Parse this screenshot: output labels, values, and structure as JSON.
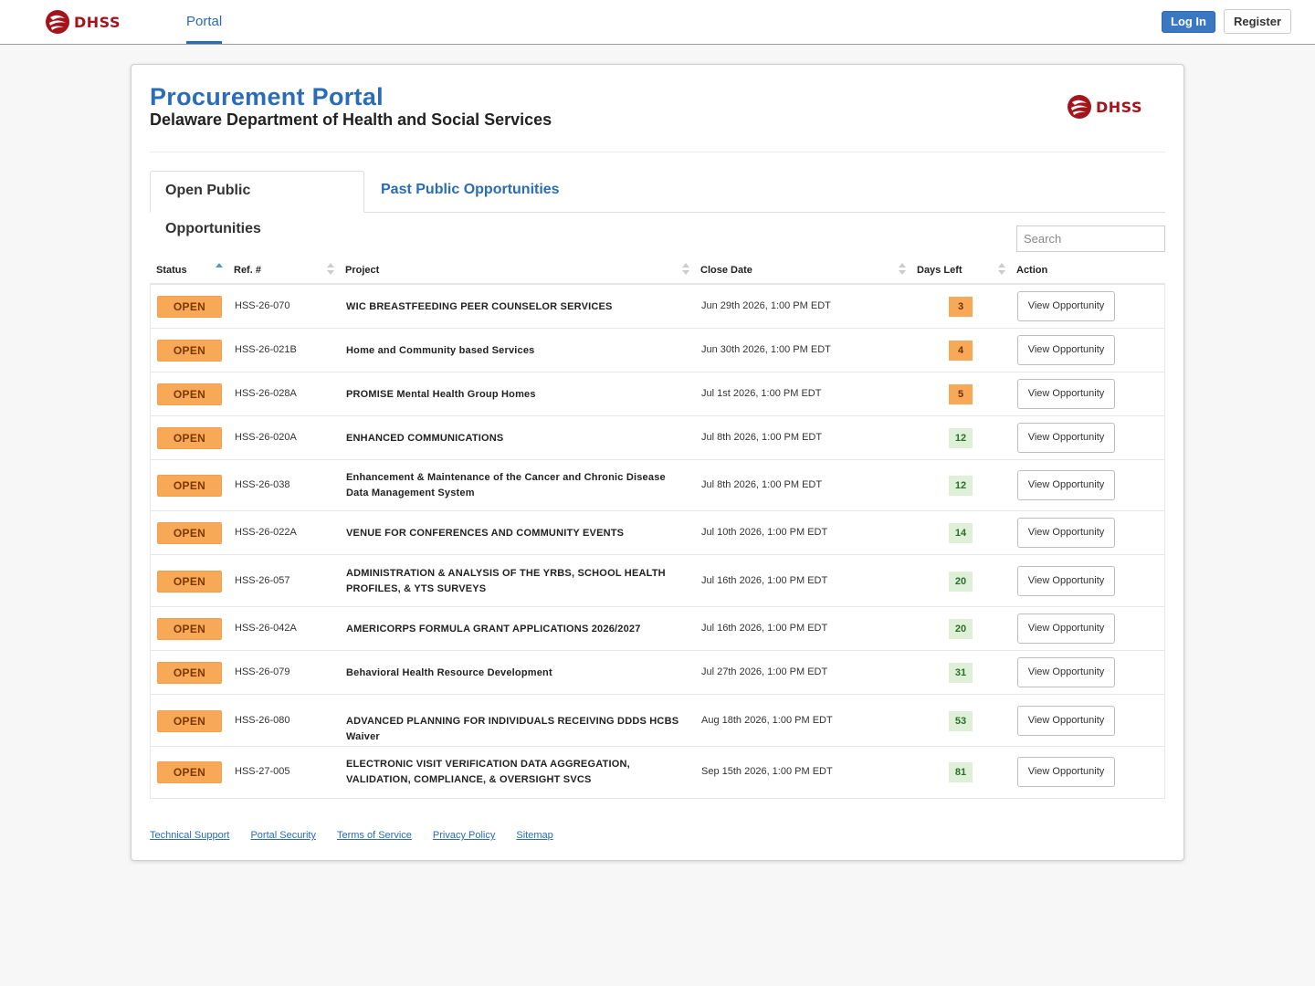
{
  "nav": {
    "logo_text": "DHSS",
    "portal_tab": "Portal",
    "login_label": "Log In",
    "register_label": "Register"
  },
  "header": {
    "title": "Procurement Portal",
    "subtitle": "Delaware Department of Health and Social Services",
    "logo_text": "DHSS"
  },
  "tabs": {
    "open": "Open Public Opportunities",
    "past": "Past Public Opportunities"
  },
  "search": {
    "placeholder": "Search"
  },
  "columns": {
    "status": "Status",
    "ref": "Ref. #",
    "project": "Project",
    "close_date": "Close Date",
    "days_left": "Days Left",
    "action": "Action"
  },
  "rows": [
    {
      "status": "OPEN",
      "ref": "HSS-26-070",
      "project": "WIC BREASTFEEDING PEER COUNSELOR SERVICES",
      "close": "Jun 29th 2026, 1:00 PM EDT",
      "days": "3",
      "level": "warn",
      "action": "View Opportunity"
    },
    {
      "status": "OPEN",
      "ref": "HSS-26-021B",
      "project": "Home and Community based Services",
      "close": "Jun 30th 2026, 1:00 PM EDT",
      "days": "4",
      "level": "warn",
      "action": "View Opportunity"
    },
    {
      "status": "OPEN",
      "ref": "HSS-26-028A",
      "project": "PROMISE Mental Health Group Homes",
      "close": "Jul 1st 2026, 1:00 PM EDT",
      "days": "5",
      "level": "warn",
      "action": "View Opportunity"
    },
    {
      "status": "OPEN",
      "ref": "HSS-26-020A",
      "project": "ENHANCED COMMUNICATIONS",
      "close": "Jul 8th 2026, 1:00 PM EDT",
      "days": "12",
      "level": "ok",
      "action": "View Opportunity"
    },
    {
      "status": "OPEN",
      "ref": "HSS-26-038",
      "project": "Enhancement & Maintenance of the Cancer and Chronic Disease Data Management System",
      "close": "Jul 8th 2026, 1:00 PM EDT",
      "days": "12",
      "level": "ok",
      "action": "View Opportunity"
    },
    {
      "status": "OPEN",
      "ref": "HSS-26-022A",
      "project": "VENUE FOR CONFERENCES AND COMMUNITY EVENTS",
      "close": "Jul 10th 2026, 1:00 PM EDT",
      "days": "14",
      "level": "ok",
      "action": "View Opportunity"
    },
    {
      "status": "OPEN",
      "ref": "HSS-26-057",
      "project": "ADMINISTRATION & ANALYSIS OF THE YRBS, SCHOOL HEALTH PROFILES, & YTS SURVEYS",
      "close": "Jul 16th 2026, 1:00 PM EDT",
      "days": "20",
      "level": "ok",
      "action": "View Opportunity"
    },
    {
      "status": "OPEN",
      "ref": "HSS-26-042A",
      "project": "AMERICORPS FORMULA GRANT APPLICATIONS 2026/2027",
      "close": "Jul 16th 2026, 1:00 PM EDT",
      "days": "20",
      "level": "ok",
      "action": "View Opportunity"
    },
    {
      "status": "OPEN",
      "ref": "HSS-26-079",
      "project": "Behavioral Health Resource Development",
      "close": "Jul 27th 2026, 1:00 PM EDT",
      "days": "31",
      "level": "ok",
      "action": "View Opportunity"
    },
    {
      "status": "OPEN",
      "ref": "HSS-26-080",
      "project": "ADVANCED PLANNING FOR INDIVIDUALS RECEIVING DDDS HCBS Waiver",
      "close": "Aug 18th 2026, 1:00 PM EDT",
      "days": "53",
      "level": "ok",
      "action": "View Opportunity"
    },
    {
      "status": "OPEN",
      "ref": "HSS-27-005",
      "project": "ELECTRONIC VISIT VERIFICATION DATA AGGREGATION, VALIDATION, COMPLIANCE, & OVERSIGHT SVCS",
      "close": "Sep 15th 2026, 1:00 PM EDT",
      "days": "81",
      "level": "ok",
      "action": "View Opportunity"
    }
  ],
  "footer": {
    "links": [
      "Technical Support",
      "Portal Security",
      "Terms of Service",
      "Privacy Policy",
      "Sitemap"
    ]
  },
  "colors": {
    "brand_blue": "#2a6cb6",
    "dhss_red": "#a3141d",
    "status_orange": "#f8a958",
    "days_ok_green": "#dff0d8"
  }
}
